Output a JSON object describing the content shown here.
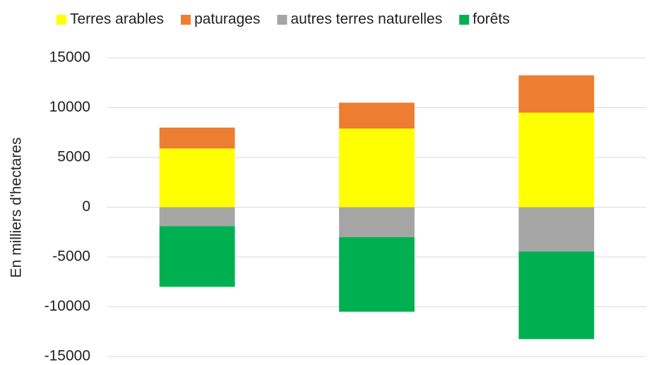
{
  "chart_data": {
    "type": "bar",
    "stacked": true,
    "y_label": "En milliers d'hectares",
    "categories": [
      null,
      null,
      null
    ],
    "series": [
      {
        "name": "Terres arables",
        "color": "#ffff00",
        "values": [
          5900,
          7900,
          9500
        ]
      },
      {
        "name": "paturages",
        "color": "#ed7d31",
        "values": [
          2100,
          2600,
          3750
        ]
      },
      {
        "name": "autres terres naturelles",
        "color": "#a5a5a5",
        "values": [
          -1900,
          -3000,
          -4450
        ]
      },
      {
        "name": "forêts",
        "color": "#00b050",
        "values": [
          -6100,
          -7500,
          -8800
        ]
      }
    ],
    "ylim": [
      -15000,
      15000
    ],
    "yticks": [
      -15000,
      -10000,
      -5000,
      0,
      5000,
      10000,
      15000
    ],
    "grid": true,
    "legend": "top"
  }
}
